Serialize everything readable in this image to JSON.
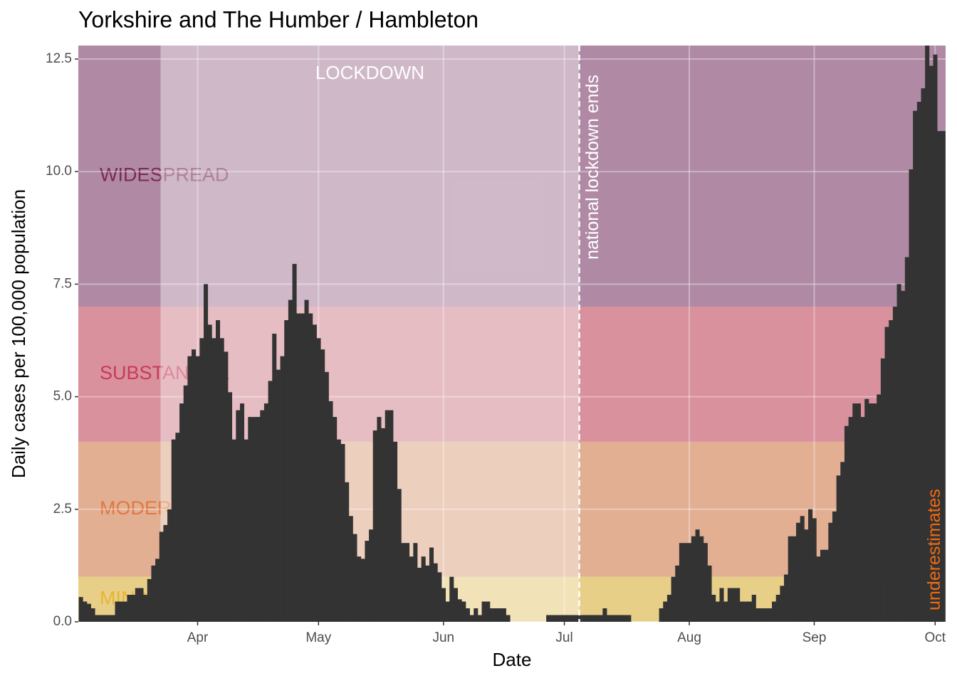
{
  "chart_data": {
    "type": "bar",
    "title": "Yorkshire and The Humber / Hambleton",
    "x_label": "Date",
    "y_label": "Daily cases per 100,000 population",
    "x": [
      2,
      3,
      4,
      5,
      6,
      7,
      8,
      9,
      10,
      11,
      12,
      13,
      14,
      15,
      16,
      17,
      18,
      19,
      20,
      21,
      22,
      23,
      24,
      25,
      26,
      27,
      28,
      29,
      30,
      31,
      32,
      33,
      34,
      35,
      36,
      37,
      38,
      39,
      40,
      41,
      42,
      43,
      44,
      45,
      46,
      47,
      48,
      49,
      50,
      51,
      52,
      53,
      54,
      55,
      56,
      57,
      58,
      59,
      60,
      61,
      62,
      63,
      64,
      65,
      66,
      67,
      68,
      69,
      70,
      71,
      72,
      73,
      74,
      75,
      76,
      77,
      78,
      79,
      80,
      81,
      82,
      83,
      84,
      85,
      86,
      87,
      88,
      89,
      90,
      91,
      92,
      93,
      94,
      95,
      96,
      97,
      98,
      99,
      100,
      101,
      102,
      103,
      104,
      105,
      106,
      107,
      108,
      109,
      110,
      111,
      112,
      113,
      114,
      115,
      116,
      117,
      118,
      119,
      120,
      121,
      122,
      123,
      124,
      125,
      126,
      127,
      128,
      129,
      130,
      131,
      132,
      133,
      134,
      135,
      136,
      137,
      138,
      139,
      140,
      141,
      142,
      143,
      144,
      145,
      146,
      147,
      148,
      149,
      150,
      151,
      152,
      153,
      154,
      155,
      156,
      157,
      158,
      159,
      160,
      161,
      162,
      163,
      164,
      165,
      166,
      167,
      168,
      169,
      170,
      171,
      172,
      173,
      174,
      175,
      176,
      177,
      178,
      179,
      180,
      181,
      182,
      183,
      184,
      185,
      186,
      187,
      188,
      189,
      190,
      191,
      192,
      193,
      194,
      195,
      196,
      197,
      198,
      199,
      200,
      201,
      202,
      203,
      204,
      205,
      206,
      207,
      208,
      209,
      210,
      211,
      212,
      213,
      214,
      215,
      216
    ],
    "values": [
      0.55,
      0.45,
      0.4,
      0.3,
      0.15,
      0.15,
      0.15,
      0.15,
      0.15,
      0.45,
      0.45,
      0.45,
      0.6,
      0.6,
      0.75,
      0.75,
      0.6,
      0.95,
      1.25,
      1.4,
      2.0,
      2.15,
      2.5,
      4.05,
      4.2,
      4.85,
      5.25,
      5.9,
      6.05,
      5.9,
      6.3,
      7.5,
      6.6,
      6.3,
      6.7,
      6.3,
      6.0,
      5.1,
      4.05,
      4.7,
      4.85,
      4.05,
      4.55,
      4.55,
      4.55,
      4.7,
      4.85,
      5.35,
      6.4,
      5.6,
      5.9,
      6.7,
      7.15,
      7.95,
      6.85,
      6.85,
      7.15,
      6.85,
      6.6,
      6.3,
      6.05,
      5.55,
      4.9,
      4.55,
      4.05,
      3.95,
      3.1,
      2.35,
      1.95,
      1.45,
      1.4,
      1.8,
      2.05,
      4.25,
      4.55,
      4.3,
      4.7,
      4.7,
      4.0,
      2.95,
      1.75,
      1.75,
      1.45,
      1.75,
      1.2,
      1.45,
      1.25,
      1.65,
      1.3,
      1.1,
      0.75,
      0.45,
      1.0,
      0.75,
      0.5,
      0.45,
      0.3,
      0.15,
      0.3,
      0.15,
      0.45,
      0.45,
      0.3,
      0.3,
      0.3,
      0.3,
      0.15,
      0,
      0,
      0,
      0,
      0,
      0,
      0,
      0,
      0,
      0.15,
      0.15,
      0.15,
      0.15,
      0.15,
      0.15,
      0.15,
      0.15,
      0.15,
      0.15,
      0.15,
      0.15,
      0.15,
      0.15,
      0.3,
      0.15,
      0.15,
      0.15,
      0.15,
      0.15,
      0.15,
      0,
      0,
      0,
      0,
      0,
      0,
      0,
      0.3,
      0.45,
      0.6,
      1.0,
      1.25,
      1.75,
      1.75,
      1.75,
      1.9,
      2.05,
      1.9,
      1.75,
      1.25,
      0.6,
      0.45,
      0.75,
      0.45,
      0.75,
      0.75,
      0.75,
      0.45,
      0.45,
      0.45,
      0.6,
      0.3,
      0.3,
      0.3,
      0.3,
      0.45,
      0.6,
      0.8,
      1.05,
      1.9,
      1.9,
      2.2,
      2.35,
      2.05,
      2.5,
      2.3,
      1.45,
      1.6,
      1.6,
      2.2,
      2.45,
      3.25,
      3.55,
      4.35,
      4.55,
      4.85,
      4.85,
      4.55,
      4.95,
      4.85,
      4.85,
      5.05,
      5.85,
      6.55,
      6.7,
      7.0,
      7.5,
      7.35,
      8.1,
      10.05,
      11.35,
      11.55,
      11.85,
      12.8,
      12.35,
      12.6,
      10.9,
      10.9
    ],
    "color": "#333333",
    "xlim": [
      1.4,
      216.6
    ],
    "xticks": [
      {
        "value": 31,
        "label": "Apr"
      },
      {
        "value": 61,
        "label": "May"
      },
      {
        "value": 92,
        "label": "Jun"
      },
      {
        "value": 122,
        "label": "Jul"
      },
      {
        "value": 153,
        "label": "Aug"
      },
      {
        "value": 184,
        "label": "Sep"
      },
      {
        "value": 214,
        "label": "Oct"
      }
    ],
    "ylim": [
      0,
      12.8
    ],
    "yticks": [
      {
        "value": 0,
        "label": "0.0"
      },
      {
        "value": 2.5,
        "label": "2.5"
      },
      {
        "value": 5,
        "label": "5.0"
      },
      {
        "value": 7.5,
        "label": "7.5"
      },
      {
        "value": 10,
        "label": "10.0"
      },
      {
        "value": 12.5,
        "label": "12.5"
      }
    ],
    "grid": true,
    "bands": [
      {
        "label": "MINIMAL",
        "from": 0,
        "to": 1,
        "color": "#e8cf88",
        "text_color": "#e8b530"
      },
      {
        "label": "MODERATE",
        "from": 1,
        "to": 4,
        "color": "#e2af93",
        "text_color": "#e07840"
      },
      {
        "label": "SUBSTANTIAL",
        "from": 4,
        "to": 7,
        "color": "#d8919d",
        "text_color": "#c83a58"
      },
      {
        "label": "WIDESPREAD",
        "from": 7,
        "to": 12.8,
        "color": "#b08aa5",
        "text_color": "#7a2858"
      }
    ],
    "lockdown": {
      "label": "LOCKDOWN",
      "start": 21.8,
      "end": 125.7
    },
    "annotations": [
      {
        "text": "national lockdown ends",
        "x": 125.7,
        "color": "#ffffff"
      },
      {
        "text": "underestimates",
        "x": 214,
        "color": "#f06a10"
      }
    ]
  }
}
